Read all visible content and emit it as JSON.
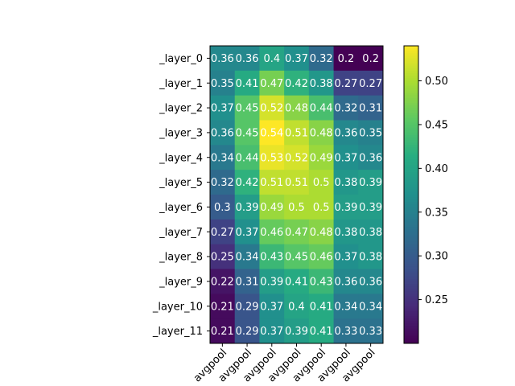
{
  "chart_data": {
    "type": "heatmap",
    "title": "",
    "xlabel": "",
    "ylabel": "",
    "colormap": "viridis",
    "rows": [
      "_layer_0",
      "_layer_1",
      "_layer_2",
      "_layer_3",
      "_layer_4",
      "_layer_5",
      "_layer_6",
      "_layer_7",
      "_layer_8",
      "_layer_9",
      "_layer_10",
      "_layer_11"
    ],
    "columns": [
      "avgpool",
      "avgpool",
      "avgpool",
      "avgpool",
      "avgpool",
      "avgpool",
      "avgpool"
    ],
    "values": [
      [
        0.36,
        0.36,
        0.4,
        0.37,
        0.32,
        0.2,
        0.2
      ],
      [
        0.35,
        0.41,
        0.47,
        0.42,
        0.38,
        0.27,
        0.27
      ],
      [
        0.37,
        0.45,
        0.52,
        0.48,
        0.44,
        0.32,
        0.31
      ],
      [
        0.36,
        0.45,
        0.54,
        0.51,
        0.48,
        0.36,
        0.35
      ],
      [
        0.34,
        0.44,
        0.53,
        0.52,
        0.49,
        0.37,
        0.36
      ],
      [
        0.32,
        0.42,
        0.51,
        0.51,
        0.5,
        0.38,
        0.39
      ],
      [
        0.3,
        0.39,
        0.49,
        0.5,
        0.5,
        0.39,
        0.39
      ],
      [
        0.27,
        0.37,
        0.46,
        0.47,
        0.48,
        0.38,
        0.38
      ],
      [
        0.25,
        0.34,
        0.43,
        0.45,
        0.46,
        0.37,
        0.38
      ],
      [
        0.22,
        0.31,
        0.39,
        0.41,
        0.43,
        0.36,
        0.36
      ],
      [
        0.21,
        0.29,
        0.37,
        0.4,
        0.41,
        0.34,
        0.34
      ],
      [
        0.21,
        0.29,
        0.37,
        0.39,
        0.41,
        0.33,
        0.33
      ]
    ],
    "cell_labels": [
      [
        "0.36",
        "0.36",
        "0.4",
        "0.37",
        "0.32",
        "0.2",
        "0.2"
      ],
      [
        "0.35",
        "0.41",
        "0.47",
        "0.42",
        "0.38",
        "0.27",
        "0.27"
      ],
      [
        "0.37",
        "0.45",
        "0.52",
        "0.48",
        "0.44",
        "0.32",
        "0.31"
      ],
      [
        "0.36",
        "0.45",
        "0.54",
        "0.51",
        "0.48",
        "0.36",
        "0.35"
      ],
      [
        "0.34",
        "0.44",
        "0.53",
        "0.52",
        "0.49",
        "0.37",
        "0.36"
      ],
      [
        "0.32",
        "0.42",
        "0.51",
        "0.51",
        "0.5",
        "0.38",
        "0.39"
      ],
      [
        "0.3",
        "0.39",
        "0.49",
        "0.5",
        "0.5",
        "0.39",
        "0.39"
      ],
      [
        "0.27",
        "0.37",
        "0.46",
        "0.47",
        "0.48",
        "0.38",
        "0.38"
      ],
      [
        "0.25",
        "0.34",
        "0.43",
        "0.45",
        "0.46",
        "0.37",
        "0.38"
      ],
      [
        "0.22",
        "0.31",
        "0.39",
        "0.41",
        "0.43",
        "0.36",
        "0.36"
      ],
      [
        "0.21",
        "0.29",
        "0.37",
        "0.4",
        "0.41",
        "0.34",
        "0.34"
      ],
      [
        "0.21",
        "0.29",
        "0.37",
        "0.39",
        "0.41",
        "0.33",
        "0.33"
      ]
    ],
    "value_range": [
      0.2,
      0.54
    ],
    "colorbar": {
      "ticks": [
        0.25,
        0.3,
        0.35,
        0.4,
        0.45,
        0.5
      ],
      "tick_labels": [
        "0.25",
        "0.30",
        "0.35",
        "0.40",
        "0.45",
        "0.50"
      ]
    },
    "cell_label_color": "#ffffff",
    "grid": false
  }
}
